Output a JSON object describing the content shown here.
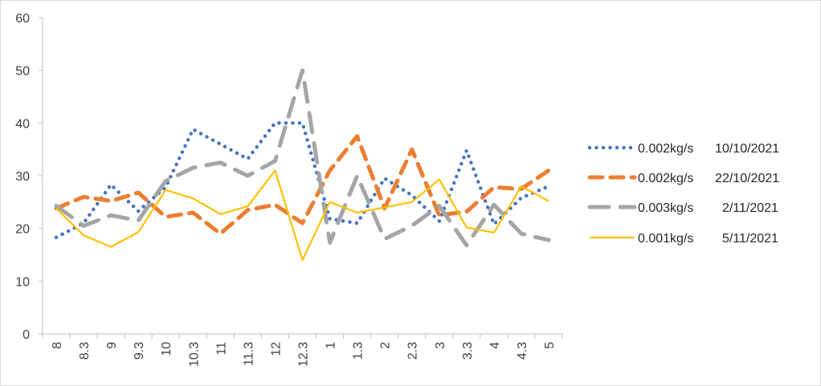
{
  "chart_data": {
    "type": "line",
    "title": "",
    "xlabel": "",
    "ylabel": "",
    "ylim": [
      0,
      60
    ],
    "yticks": [
      "0",
      "10",
      "20",
      "30",
      "40",
      "50",
      "60"
    ],
    "categories": [
      "8",
      "8.3",
      "9",
      "9.3",
      "10",
      "10.3",
      "11",
      "11.3",
      "12",
      "12.3",
      "1",
      "1.3",
      "2",
      "2.3",
      "3",
      "3.3",
      "4",
      "4.3",
      "5"
    ],
    "grid": false,
    "legend_position": "right",
    "series": [
      {
        "name": "0.002kg/s      10/10/2021",
        "color": "#4472c4",
        "dash": "dot",
        "values": [
          18.3,
          21.0,
          28.3,
          23.3,
          27.8,
          38.8,
          36.0,
          33.2,
          40.0,
          40.0,
          21.8,
          21.0,
          29.5,
          26.3,
          21.4,
          34.8,
          20.8,
          25.8,
          28.0
        ]
      },
      {
        "name": "0.002kg/s      22/10/2021",
        "color": "#ed7d31",
        "dash": "dash",
        "values": [
          23.8,
          26.0,
          25.2,
          26.8,
          22.2,
          23.0,
          19.0,
          23.5,
          24.5,
          21.0,
          31.0,
          37.5,
          23.8,
          35.0,
          22.5,
          23.2,
          27.8,
          27.5,
          31.0
        ]
      },
      {
        "name": "0.003kg/s        2/11/2021",
        "color": "#a5a5a5",
        "dash": "longdash",
        "values": [
          24.3,
          20.5,
          22.5,
          21.5,
          29.0,
          31.5,
          32.5,
          30.0,
          32.8,
          50.0,
          17.3,
          30.0,
          18.0,
          20.5,
          24.3,
          16.8,
          24.5,
          19.0,
          17.8
        ]
      },
      {
        "name": "0.001kg/s        5/11/2021",
        "color": "#ffc000",
        "dash": "solid",
        "values": [
          23.8,
          18.7,
          16.5,
          19.3,
          27.3,
          25.7,
          22.7,
          24.2,
          31.0,
          14.0,
          25.0,
          23.0,
          24.0,
          25.0,
          29.3,
          20.2,
          19.2,
          28.0,
          25.2
        ]
      }
    ]
  }
}
